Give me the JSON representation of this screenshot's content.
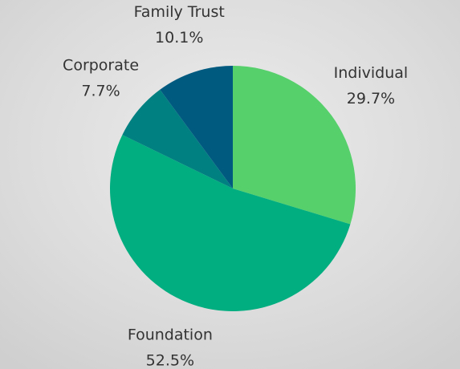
{
  "chart_data": {
    "type": "pie",
    "categories": [
      "Individual",
      "Foundation",
      "Corporate",
      "Family Trust"
    ],
    "values": [
      29.7,
      52.5,
      7.7,
      10.1
    ],
    "value_labels": [
      "29.7%",
      "52.5%",
      "7.7%",
      "10.1%"
    ],
    "colors": [
      "#55d06b",
      "#00ae7f",
      "#008080",
      "#005a80"
    ]
  }
}
